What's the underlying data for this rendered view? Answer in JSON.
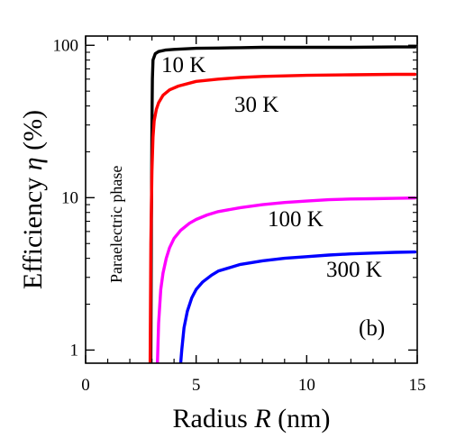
{
  "chart_data": {
    "type": "line",
    "panel_label": "(b)",
    "xlabel": {
      "prefix": "Radius",
      "var": "R",
      "unit": "(nm)"
    },
    "ylabel": {
      "prefix": "Efficiency",
      "var": "η",
      "unit": "(%)"
    },
    "xlim": [
      0,
      15
    ],
    "ylim": [
      0.82,
      115
    ],
    "yscale": "log",
    "xticks": [
      0,
      5,
      10,
      15
    ],
    "yticks": [
      1,
      10,
      100
    ],
    "grid": false,
    "annotations": [
      {
        "text": "Paraelectric phase",
        "orientation": "vertical"
      }
    ],
    "series": [
      {
        "name": "10 K",
        "color": "#000000",
        "points": [
          [
            2.95,
            0.82
          ],
          [
            2.97,
            5
          ],
          [
            3.0,
            30
          ],
          [
            3.02,
            60
          ],
          [
            3.05,
            80
          ],
          [
            3.15,
            88
          ],
          [
            3.3,
            91
          ],
          [
            3.6,
            93
          ],
          [
            4.0,
            94
          ],
          [
            5.0,
            95.5
          ],
          [
            6.0,
            96
          ],
          [
            7.0,
            96.5
          ],
          [
            8.0,
            97
          ],
          [
            10.0,
            97
          ],
          [
            12.0,
            97
          ],
          [
            14.0,
            97.5
          ],
          [
            14.9,
            97.5
          ]
        ]
      },
      {
        "name": "30 K",
        "color": "#ff0000",
        "points": [
          [
            2.92,
            0.82
          ],
          [
            2.95,
            5
          ],
          [
            3.0,
            15
          ],
          [
            3.05,
            25
          ],
          [
            3.1,
            32
          ],
          [
            3.2,
            38
          ],
          [
            3.3,
            42
          ],
          [
            3.5,
            47
          ],
          [
            3.8,
            51
          ],
          [
            4.2,
            54
          ],
          [
            5.0,
            58
          ],
          [
            6.0,
            60
          ],
          [
            7.0,
            61.5
          ],
          [
            8.0,
            62.5
          ],
          [
            10.0,
            63.5
          ],
          [
            12.0,
            64
          ],
          [
            14.0,
            64.5
          ],
          [
            14.9,
            64.5
          ]
        ]
      },
      {
        "name": "100 K",
        "color": "#ff00ff",
        "points": [
          [
            3.25,
            0.82
          ],
          [
            3.3,
            1.5
          ],
          [
            3.4,
            2.5
          ],
          [
            3.5,
            3.2
          ],
          [
            3.65,
            4.0
          ],
          [
            3.8,
            4.7
          ],
          [
            4.0,
            5.4
          ],
          [
            4.3,
            6.1
          ],
          [
            4.7,
            6.8
          ],
          [
            5.0,
            7.2
          ],
          [
            5.5,
            7.7
          ],
          [
            6.0,
            8.1
          ],
          [
            7.0,
            8.6
          ],
          [
            8.0,
            9.0
          ],
          [
            9.0,
            9.3
          ],
          [
            10.0,
            9.5
          ],
          [
            11.0,
            9.7
          ],
          [
            12.0,
            9.8
          ],
          [
            13.0,
            9.85
          ],
          [
            14.0,
            9.9
          ],
          [
            14.9,
            9.95
          ]
        ]
      },
      {
        "name": "300 K",
        "color": "#0000ff",
        "points": [
          [
            4.3,
            0.82
          ],
          [
            4.35,
            1.0
          ],
          [
            4.45,
            1.4
          ],
          [
            4.6,
            1.8
          ],
          [
            4.8,
            2.2
          ],
          [
            5.0,
            2.5
          ],
          [
            5.3,
            2.8
          ],
          [
            5.7,
            3.1
          ],
          [
            6.0,
            3.3
          ],
          [
            7.0,
            3.65
          ],
          [
            8.0,
            3.85
          ],
          [
            9.0,
            4.0
          ],
          [
            10.0,
            4.1
          ],
          [
            11.0,
            4.2
          ],
          [
            12.0,
            4.28
          ],
          [
            13.0,
            4.33
          ],
          [
            14.0,
            4.38
          ],
          [
            14.9,
            4.4
          ]
        ]
      }
    ]
  }
}
